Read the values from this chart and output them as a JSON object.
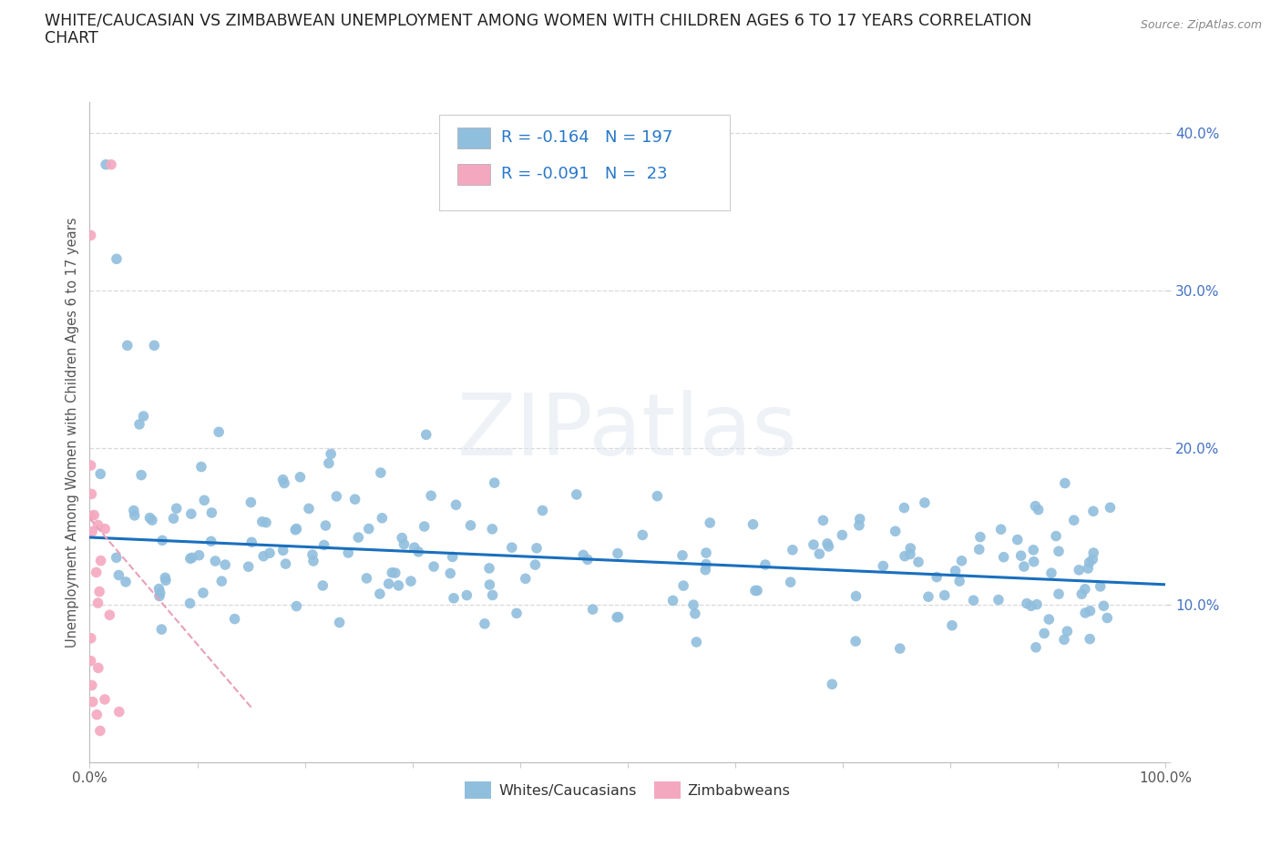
{
  "title_line1": "WHITE/CAUCASIAN VS ZIMBABWEAN UNEMPLOYMENT AMONG WOMEN WITH CHILDREN AGES 6 TO 17 YEARS CORRELATION",
  "title_line2": "CHART",
  "source_text": "Source: ZipAtlas.com",
  "ylabel": "Unemployment Among Women with Children Ages 6 to 17 years",
  "xlim": [
    0.0,
    1.0
  ],
  "ylim": [
    0.0,
    0.42
  ],
  "x_tick_positions": [
    0.0,
    0.1,
    0.2,
    0.3,
    0.4,
    0.5,
    0.6,
    0.7,
    0.8,
    0.9,
    1.0
  ],
  "x_tick_labels": [
    "0.0%",
    "",
    "",
    "",
    "",
    "",
    "",
    "",
    "",
    "",
    "100.0%"
  ],
  "y_tick_positions": [
    0.0,
    0.1,
    0.2,
    0.3,
    0.4
  ],
  "y_tick_labels": [
    "",
    "10.0%",
    "20.0%",
    "30.0%",
    "40.0%"
  ],
  "watermark_text": "ZIPatlas",
  "white_scatter_color": "#90bedd",
  "white_scatter_edge": "none",
  "zim_scatter_color": "#f4a8c0",
  "zim_scatter_edge": "none",
  "white_line_color": "#1a6fbd",
  "zim_line_color": "#e8a0b8",
  "background_color": "#ffffff",
  "grid_color": "#d8d8d8",
  "legend_box_color": "#ffffff",
  "legend_edge_color": "#cccccc",
  "legend_blue_color": "#2878c8",
  "legend_black_color": "#333333",
  "white_intercept": 0.143,
  "white_slope": -0.03,
  "zim_intercept": 0.155,
  "zim_slope": -0.8,
  "bottom_legend_label1": "Whites/Caucasians",
  "bottom_legend_label2": "Zimbabweans",
  "R_white": -0.164,
  "N_white": 197,
  "R_zim": -0.091,
  "N_zim": 23
}
